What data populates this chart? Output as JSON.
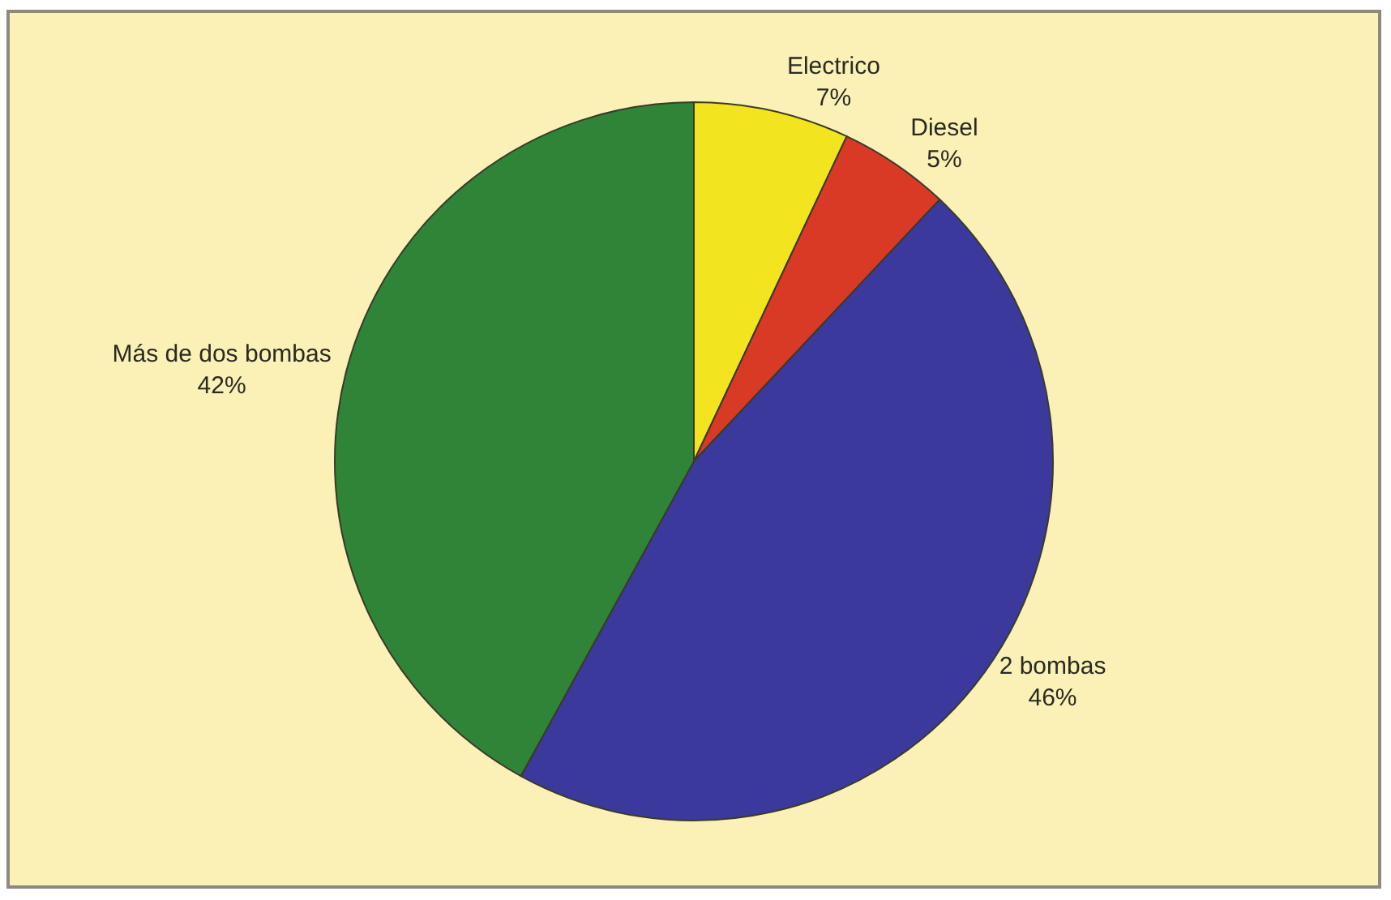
{
  "chart_data": {
    "type": "pie",
    "categories": [
      "Electrico",
      "Diesel",
      "2 bombas",
      "Más de dos bombas"
    ],
    "values": [
      7,
      5,
      46,
      42
    ],
    "value_labels": [
      "7%",
      "5%",
      "46%",
      "42%"
    ],
    "colors": [
      "#f2e41e",
      "#d83a26",
      "#3b3a9c",
      "#2f8437"
    ],
    "legend": false
  }
}
